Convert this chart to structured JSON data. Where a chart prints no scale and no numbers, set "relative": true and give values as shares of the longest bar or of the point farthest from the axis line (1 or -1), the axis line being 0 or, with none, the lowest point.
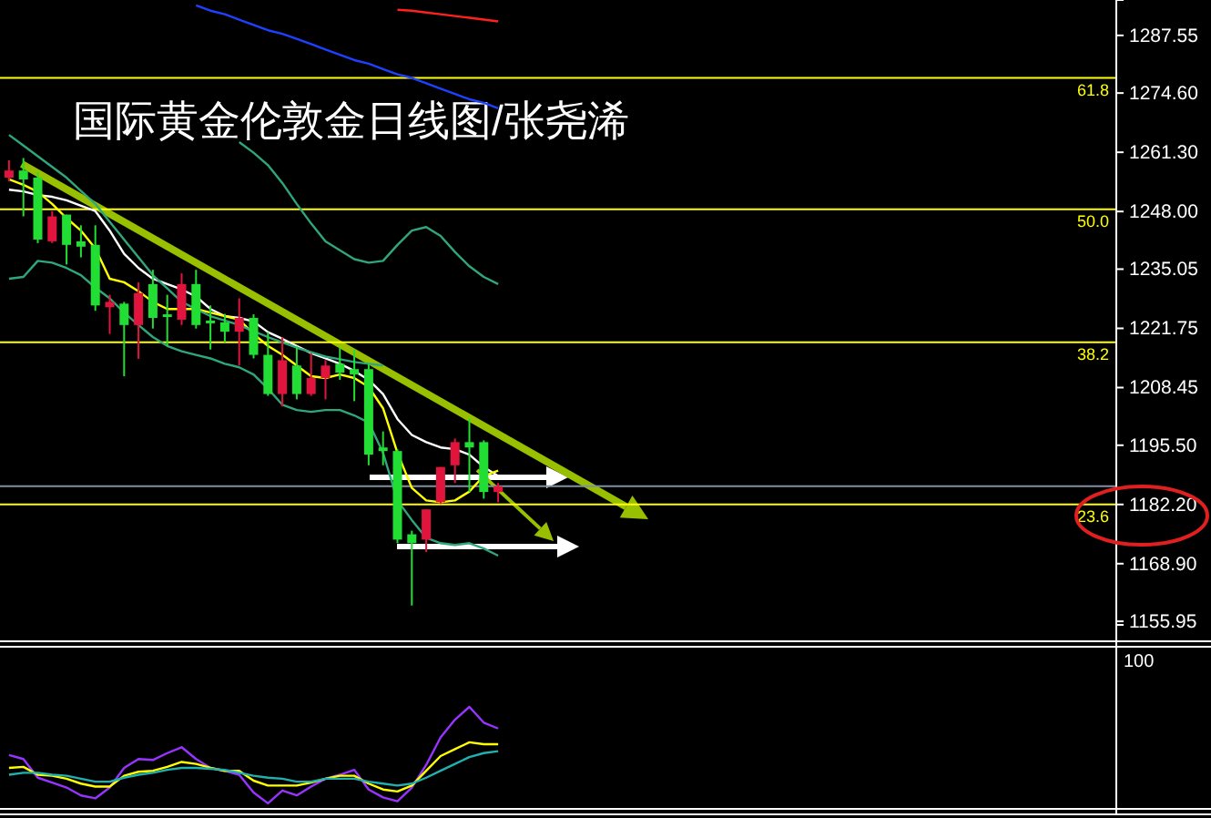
{
  "chart_data": [
    {
      "type": "candlestick",
      "title": "国际黄金伦敦金日线图/张尧浠",
      "categories": [
        null,
        null,
        null,
        null,
        null,
        null,
        null,
        null,
        null,
        null,
        null,
        null,
        null,
        null,
        null,
        null,
        null,
        null,
        null,
        null,
        null,
        null,
        null,
        null,
        null,
        null,
        null,
        null,
        null,
        null,
        null,
        null,
        null,
        null,
        null,
        null,
        null,
        null,
        null,
        null,
        null,
        null,
        null,
        null,
        null,
        null,
        null,
        null,
        null,
        null,
        null,
        null,
        null,
        null,
        null,
        null,
        null,
        null,
        null,
        null,
        null,
        null,
        null,
        null,
        null,
        null,
        null,
        null,
        null,
        null,
        null,
        null,
        null,
        null,
        null,
        null,
        null
      ],
      "ohlc": [
        [
          1257.2,
          1259.5,
          1254.8,
          1255.6
        ],
        [
          1255.2,
          1260.0,
          1246.9,
          1257.2
        ],
        [
          1241.7,
          1256.8,
          1240.9,
          1255.6
        ],
        [
          1246.9,
          1248.1,
          1240.9,
          1241.3
        ],
        [
          1240.5,
          1247.3,
          1236.1,
          1247.3
        ],
        [
          1240.1,
          1244.9,
          1237.7,
          1241.3
        ],
        [
          1226.9,
          1244.9,
          1225.7,
          1240.5
        ],
        [
          1227.7,
          1229.3,
          1220.5,
          1226.5
        ],
        [
          1222.5,
          1227.7,
          1211.0,
          1227.3
        ],
        [
          1229.7,
          1232.1,
          1214.9,
          1222.5
        ],
        [
          1224.1,
          1234.9,
          1221.7,
          1231.7
        ],
        [
          1224.5,
          1229.3,
          1217.8,
          1224.9
        ],
        [
          1231.7,
          1234.1,
          1222.5,
          1223.7
        ],
        [
          1222.5,
          1234.9,
          1221.7,
          1231.7
        ],
        [
          1223.1,
          1226.9,
          1217.0,
          1223.5
        ],
        [
          1221.0,
          1225.0,
          1218.6,
          1223.1
        ],
        [
          1224.1,
          1228.5,
          1213.4,
          1221.0
        ],
        [
          1215.8,
          1224.9,
          1215.0,
          1224.1
        ],
        [
          1207.0,
          1220.9,
          1206.6,
          1215.8
        ],
        [
          1214.6,
          1219.8,
          1204.2,
          1207.0
        ],
        [
          1207.0,
          1217.8,
          1205.8,
          1213.4
        ],
        [
          1210.6,
          1216.2,
          1206.6,
          1207.0
        ],
        [
          1213.4,
          1214.6,
          1205.8,
          1210.6
        ],
        [
          1211.8,
          1217.4,
          1210.2,
          1213.8
        ],
        [
          1211.4,
          1217.0,
          1205.4,
          1212.6
        ],
        [
          1193.4,
          1213.8,
          1191.0,
          1212.6
        ],
        [
          1194.2,
          1198.6,
          1191.0,
          1195.0
        ],
        [
          1174.3,
          1194.6,
          1173.5,
          1194.2
        ],
        [
          1173.5,
          1176.3,
          1159.5,
          1175.5
        ],
        [
          1181.1,
          1181.1,
          1171.5,
          1174.3
        ],
        [
          1190.6,
          1190.6,
          1182.3,
          1182.7
        ],
        [
          1196.2,
          1197.0,
          1187.0,
          1191.0
        ],
        [
          1195.0,
          1201.4,
          1185.0,
          1196.2
        ],
        [
          1185.0,
          1196.6,
          1183.5,
          1196.2
        ],
        [
          1186.3,
          1187.0,
          1182.7,
          1185.0
        ],
        null,
        null,
        null,
        null,
        null,
        null,
        null,
        null,
        null,
        null,
        null,
        null,
        null,
        null,
        null,
        null,
        null,
        null,
        null,
        null,
        null,
        null,
        null,
        null,
        null,
        null,
        null,
        null,
        null,
        null,
        null,
        null,
        null,
        null,
        null,
        null,
        null,
        null,
        null,
        null,
        null,
        null
      ],
      "colors": [
        "#e0143c",
        "#22dd33",
        "#22dd33",
        "#e0143c",
        "#22dd33",
        "#22dd33",
        "#22dd33",
        "#e0143c",
        "#22dd33",
        "#e0143c",
        "#22dd33",
        "#22dd33",
        "#e0143c",
        "#22dd33",
        "#22dd33",
        "#22dd33",
        "#e0143c",
        "#22dd33",
        "#22dd33",
        "#e0143c",
        "#22dd33",
        "#e0143c",
        "#e0143c",
        "#22dd33",
        "#22dd33",
        "#22dd33",
        "#22dd33",
        "#22dd33",
        "#22dd33",
        "#e0143c",
        "#e0143c",
        "#e0143c",
        "#22dd33",
        "#22dd33",
        "#e0143c",
        null,
        null,
        null,
        null,
        null,
        null,
        null,
        null,
        null,
        null,
        null,
        null,
        null,
        null,
        null,
        null,
        null,
        null,
        null,
        null,
        null,
        null,
        null,
        null,
        null,
        null,
        null,
        null,
        null,
        null,
        null,
        null,
        null,
        null,
        null,
        null,
        null,
        null,
        null,
        null,
        null,
        null
      ],
      "series": [
        {
          "type": "line",
          "color": "#ffffff",
          "values": [
            1252.9,
            1252.5,
            1251.7,
            1251.3,
            1250.5,
            1249.3,
            1248.1,
            1243.7,
            1238.5,
            1235.3,
            1232.9,
            1231.7,
            1230.5,
            1228.9,
            1226.1,
            1224.5,
            1224.1,
            1223.3,
            1220.9,
            1219.4,
            1217.8,
            1216.2,
            1215.0,
            1213.8,
            1212.2,
            1210.2,
            1207.0,
            1201.4,
            1197.8,
            1196.2,
            1195.0,
            1194.6,
            1193.4,
            1190.6,
            1188.6,
            null,
            null,
            null,
            null,
            null,
            null,
            null,
            null,
            null,
            null,
            null,
            null,
            null,
            null,
            null,
            null,
            null,
            null,
            null,
            null,
            null,
            null,
            null,
            null,
            null,
            null,
            null,
            null,
            null,
            null,
            null,
            null,
            null,
            null,
            null,
            null,
            null,
            null,
            null,
            null,
            null,
            null
          ]
        },
        {
          "type": "line",
          "color": "#ffff00",
          "values": [
            1255.2,
            1254.0,
            1252.4,
            1249.7,
            1246.5,
            1243.7,
            1239.7,
            1232.9,
            1232.1,
            1230.1,
            1227.7,
            1226.1,
            1226.1,
            1226.1,
            1225.3,
            1224.5,
            1223.7,
            1220.5,
            1217.8,
            1215.8,
            1213.4,
            1211.0,
            1210.6,
            1211.4,
            1210.6,
            1208.6,
            1203.8,
            1193.8,
            1185.9,
            1183.1,
            1182.7,
            1183.1,
            1185.1,
            1188.6,
            1189.8,
            null,
            null,
            null,
            null,
            null,
            null,
            null,
            null,
            null,
            null,
            null,
            null,
            null,
            null,
            null,
            null,
            null,
            null,
            null,
            null,
            null,
            null,
            null,
            null,
            null,
            null,
            null,
            null,
            null,
            null,
            null,
            null,
            null,
            null,
            null,
            null,
            null,
            null,
            null,
            null,
            null,
            null
          ]
        },
        {
          "type": "line",
          "color": "#2fa77a",
          "values": [
            1265.2,
            1262.8,
            1260.4,
            1258.0,
            1255.6,
            1252.6,
            1249.7,
            1245.7,
            1241.7,
            1237.7,
            1233.7,
            1230.7,
            1227.7,
            1226.1,
            1224.5,
            1223.5,
            1222.5,
            1221.1,
            1219.8,
            1218.6,
            1217.4,
            1216.4,
            1215.4,
            1214.8,
            1214.2,
            1213.8,
            1213.4,
            null,
            null,
            null,
            null,
            null,
            null,
            null,
            null,
            null,
            null,
            null,
            null,
            null,
            null,
            null,
            null,
            null,
            null,
            null,
            null,
            null,
            null,
            null,
            null,
            null,
            null,
            null,
            null,
            null,
            null,
            null,
            null,
            null,
            null,
            null,
            null,
            null,
            null,
            null,
            null,
            null,
            null,
            null,
            null,
            null,
            null,
            null,
            null,
            null,
            null
          ]
        },
        {
          "type": "line",
          "color": "#2fa77a",
          "values": [
            null,
            null,
            null,
            null,
            null,
            null,
            null,
            null,
            null,
            null,
            null,
            null,
            null,
            null,
            null,
            null,
            1263.6,
            1261.2,
            1258.4,
            1254.4,
            1249.7,
            1245.3,
            1241.3,
            1239.3,
            1237.3,
            1236.5,
            1236.9,
            1240.5,
            1243.7,
            1244.5,
            1242.5,
            1238.9,
            1235.7,
            1233.3,
            1231.7,
            null,
            null,
            null,
            null,
            null,
            null,
            null,
            null,
            null,
            null,
            null,
            null,
            null,
            null,
            null,
            null,
            null,
            null,
            null,
            null,
            null,
            null,
            null,
            null,
            null,
            null,
            null,
            null,
            null,
            null,
            null,
            null,
            null,
            null,
            null,
            null,
            null,
            null,
            null,
            null,
            null,
            null
          ]
        },
        {
          "type": "line",
          "color": "#2fa77a",
          "values": [
            1232.9,
            1233.3,
            1236.9,
            1236.5,
            1235.3,
            1233.7,
            1230.9,
            1228.5,
            1225.3,
            1222.5,
            1219.8,
            1217.8,
            1216.6,
            1215.8,
            1215.0,
            1213.8,
            1213.0,
            1211.4,
            1208.2,
            1204.6,
            1203.4,
            1203.0,
            1203.4,
            1203.4,
            1202.2,
            1200.6,
            1193.8,
            1183.1,
            1178.7,
            1174.7,
            1173.5,
            1173.1,
            1173.5,
            1172.3,
            1170.7,
            null,
            null,
            null,
            null,
            null,
            null,
            null,
            null,
            null,
            null,
            null,
            null,
            null,
            null,
            null,
            null,
            null,
            null,
            null,
            null,
            null,
            null,
            null,
            null,
            null,
            null,
            null,
            null,
            null,
            null,
            null,
            null,
            null,
            null,
            null,
            null,
            null,
            null,
            null,
            null,
            null,
            null
          ]
        },
        {
          "type": "line",
          "color": "#2040ff",
          "values": [
            null,
            null,
            null,
            null,
            null,
            null,
            null,
            null,
            null,
            null,
            null,
            null,
            null,
            1294.3,
            1293.1,
            1292.3,
            1291.1,
            1289.9,
            1288.7,
            1287.9,
            1286.8,
            1285.6,
            1284.4,
            1283.2,
            1282.0,
            1281.2,
            1280.0,
            1278.8,
            1278.0,
            1276.8,
            1275.6,
            1274.4,
            1273.2,
            1272.4,
            1271.2,
            null,
            null,
            null,
            null,
            null,
            null,
            null,
            null,
            null,
            null,
            null,
            null,
            null,
            null,
            null,
            null,
            null,
            null,
            null,
            null,
            null,
            null,
            null,
            null,
            null,
            null,
            null,
            null,
            null,
            null,
            null,
            null,
            null,
            null,
            null,
            null,
            null,
            null,
            null,
            null,
            null,
            null
          ]
        },
        {
          "type": "line",
          "color": "#ff2020",
          "values": [
            null,
            null,
            null,
            null,
            null,
            null,
            null,
            null,
            null,
            null,
            null,
            null,
            null,
            null,
            null,
            null,
            null,
            null,
            null,
            null,
            null,
            null,
            null,
            null,
            null,
            null,
            null,
            1293.3,
            1293.1,
            1292.7,
            1292.3,
            1291.9,
            1291.5,
            1291.1,
            1290.7,
            null,
            null,
            null,
            null,
            null,
            null,
            null,
            null,
            null,
            null,
            null,
            null,
            null,
            null,
            null,
            null,
            null,
            null,
            null,
            null,
            null,
            null,
            null,
            null,
            null,
            null,
            null,
            null,
            null,
            null,
            null,
            null,
            null,
            null,
            null,
            null,
            null,
            null,
            null,
            null,
            null,
            null
          ]
        }
      ],
      "ylim": [
        1155.15,
        1295.5
      ],
      "yticks": [
        {
          "value": 1287.55,
          "label": "1287.55"
        },
        {
          "value": 1274.6,
          "label": "1274.60"
        },
        {
          "value": 1261.3,
          "label": "1261.30"
        },
        {
          "value": 1248.0,
          "label": "1248.00"
        },
        {
          "value": 1235.05,
          "label": "1235.05"
        },
        {
          "value": 1221.75,
          "label": "1221.75"
        },
        {
          "value": 1208.45,
          "label": "1208.45"
        },
        {
          "value": 1195.5,
          "label": "1195.50"
        },
        {
          "value": 1182.2,
          "label": "1182.20"
        },
        {
          "value": 1168.9,
          "label": "1168.90"
        },
        {
          "value": 1155.95,
          "label": "1155.95"
        }
      ],
      "ref_lines": [
        {
          "axis": "y",
          "value": 1278.0,
          "color": "#ffff00"
        },
        {
          "axis": "y",
          "value": 1248.5,
          "color": "#ffff00"
        },
        {
          "axis": "y",
          "value": 1218.6,
          "color": "#ffff00"
        },
        {
          "axis": "y",
          "value": 1182.2,
          "color": "#ffff00"
        },
        {
          "axis": "y",
          "value": 1186.3,
          "color": "#8090a0"
        }
      ],
      "annotations": [
        {
          "text": "61.8",
          "y": 1278.0
        },
        {
          "text": "50.0",
          "y": 1248.5
        },
        {
          "text": "38.2",
          "y": 1218.6
        },
        {
          "text": "23.6",
          "y": 1182.2
        }
      ],
      "tick_labels": "y"
    },
    {
      "type": "line",
      "relative": true,
      "categories": [
        null,
        null,
        null,
        null,
        null,
        null,
        null,
        null,
        null,
        null,
        null,
        null,
        null,
        null,
        null,
        null,
        null,
        null,
        null,
        null,
        null,
        null,
        null,
        null,
        null,
        null,
        null,
        null,
        null,
        null,
        null,
        null,
        null,
        null,
        null,
        null,
        null,
        null,
        null,
        null,
        null,
        null,
        null,
        null,
        null,
        null,
        null,
        null,
        null,
        null,
        null,
        null,
        null,
        null,
        null,
        null,
        null,
        null,
        null,
        null,
        null,
        null,
        null,
        null,
        null,
        null,
        null,
        null,
        null,
        null,
        null,
        null,
        null,
        null,
        null,
        null,
        null
      ],
      "series": [
        {
          "color": "#9933ff",
          "values": [
            0.51,
            0.47,
            0.28,
            0.23,
            0.18,
            0.1,
            0.07,
            0.18,
            0.38,
            0.47,
            0.46,
            0.53,
            0.59,
            0.47,
            0.38,
            0.35,
            0.31,
            0.13,
            0.02,
            0.15,
            0.1,
            0.19,
            0.27,
            0.31,
            0.36,
            0.16,
            0.08,
            0.04,
            0.18,
            0.41,
            0.69,
            0.87,
            1,
            0.84,
            0.78,
            null,
            null,
            null,
            null,
            null,
            null,
            null,
            null,
            null,
            null,
            null,
            null,
            null,
            null,
            null,
            null,
            null,
            null,
            null,
            null,
            null,
            null,
            null,
            null,
            null,
            null,
            null,
            null,
            null,
            null,
            null,
            null,
            null,
            null,
            null,
            null,
            null,
            null,
            null,
            null,
            null,
            null
          ]
        },
        {
          "color": "#ffff00",
          "values": [
            0.38,
            0.39,
            0.31,
            0.3,
            0.27,
            0.22,
            0.19,
            0.19,
            0.3,
            0.34,
            0.35,
            0.39,
            0.44,
            0.42,
            0.38,
            0.35,
            0.35,
            0.25,
            0.2,
            0.2,
            0.2,
            0.23,
            0.27,
            0.3,
            0.3,
            0.22,
            0.16,
            0.14,
            0.2,
            0.35,
            0.5,
            0.57,
            0.64,
            0.62,
            0.62,
            null,
            null,
            null,
            null,
            null,
            null,
            null,
            null,
            null,
            null,
            null,
            null,
            null,
            null,
            null,
            null,
            null,
            null,
            null,
            null,
            null,
            null,
            null,
            null,
            null,
            null,
            null,
            null,
            null,
            null,
            null,
            null,
            null,
            null,
            null,
            null,
            null,
            null,
            null,
            null,
            null,
            null
          ]
        },
        {
          "color": "#20b0b0",
          "values": [
            0.31,
            0.33,
            0.33,
            0.31,
            0.3,
            0.27,
            0.24,
            0.24,
            0.28,
            0.31,
            0.33,
            0.36,
            0.38,
            0.38,
            0.37,
            0.36,
            0.33,
            0.3,
            0.28,
            0.27,
            0.24,
            0.24,
            0.27,
            0.27,
            0.27,
            0.24,
            0.22,
            0.2,
            0.22,
            0.28,
            0.35,
            0.42,
            0.49,
            0.53,
            0.55,
            null,
            null,
            null,
            null,
            null,
            null,
            null,
            null,
            null,
            null,
            null,
            null,
            null,
            null,
            null,
            null,
            null,
            null,
            null,
            null,
            null,
            null,
            null,
            null,
            null,
            null,
            null,
            null,
            null,
            null,
            null,
            null,
            null,
            null,
            null,
            null,
            null,
            null,
            null,
            null,
            null,
            null
          ]
        }
      ],
      "annotations": [
        "100"
      ]
    }
  ]
}
